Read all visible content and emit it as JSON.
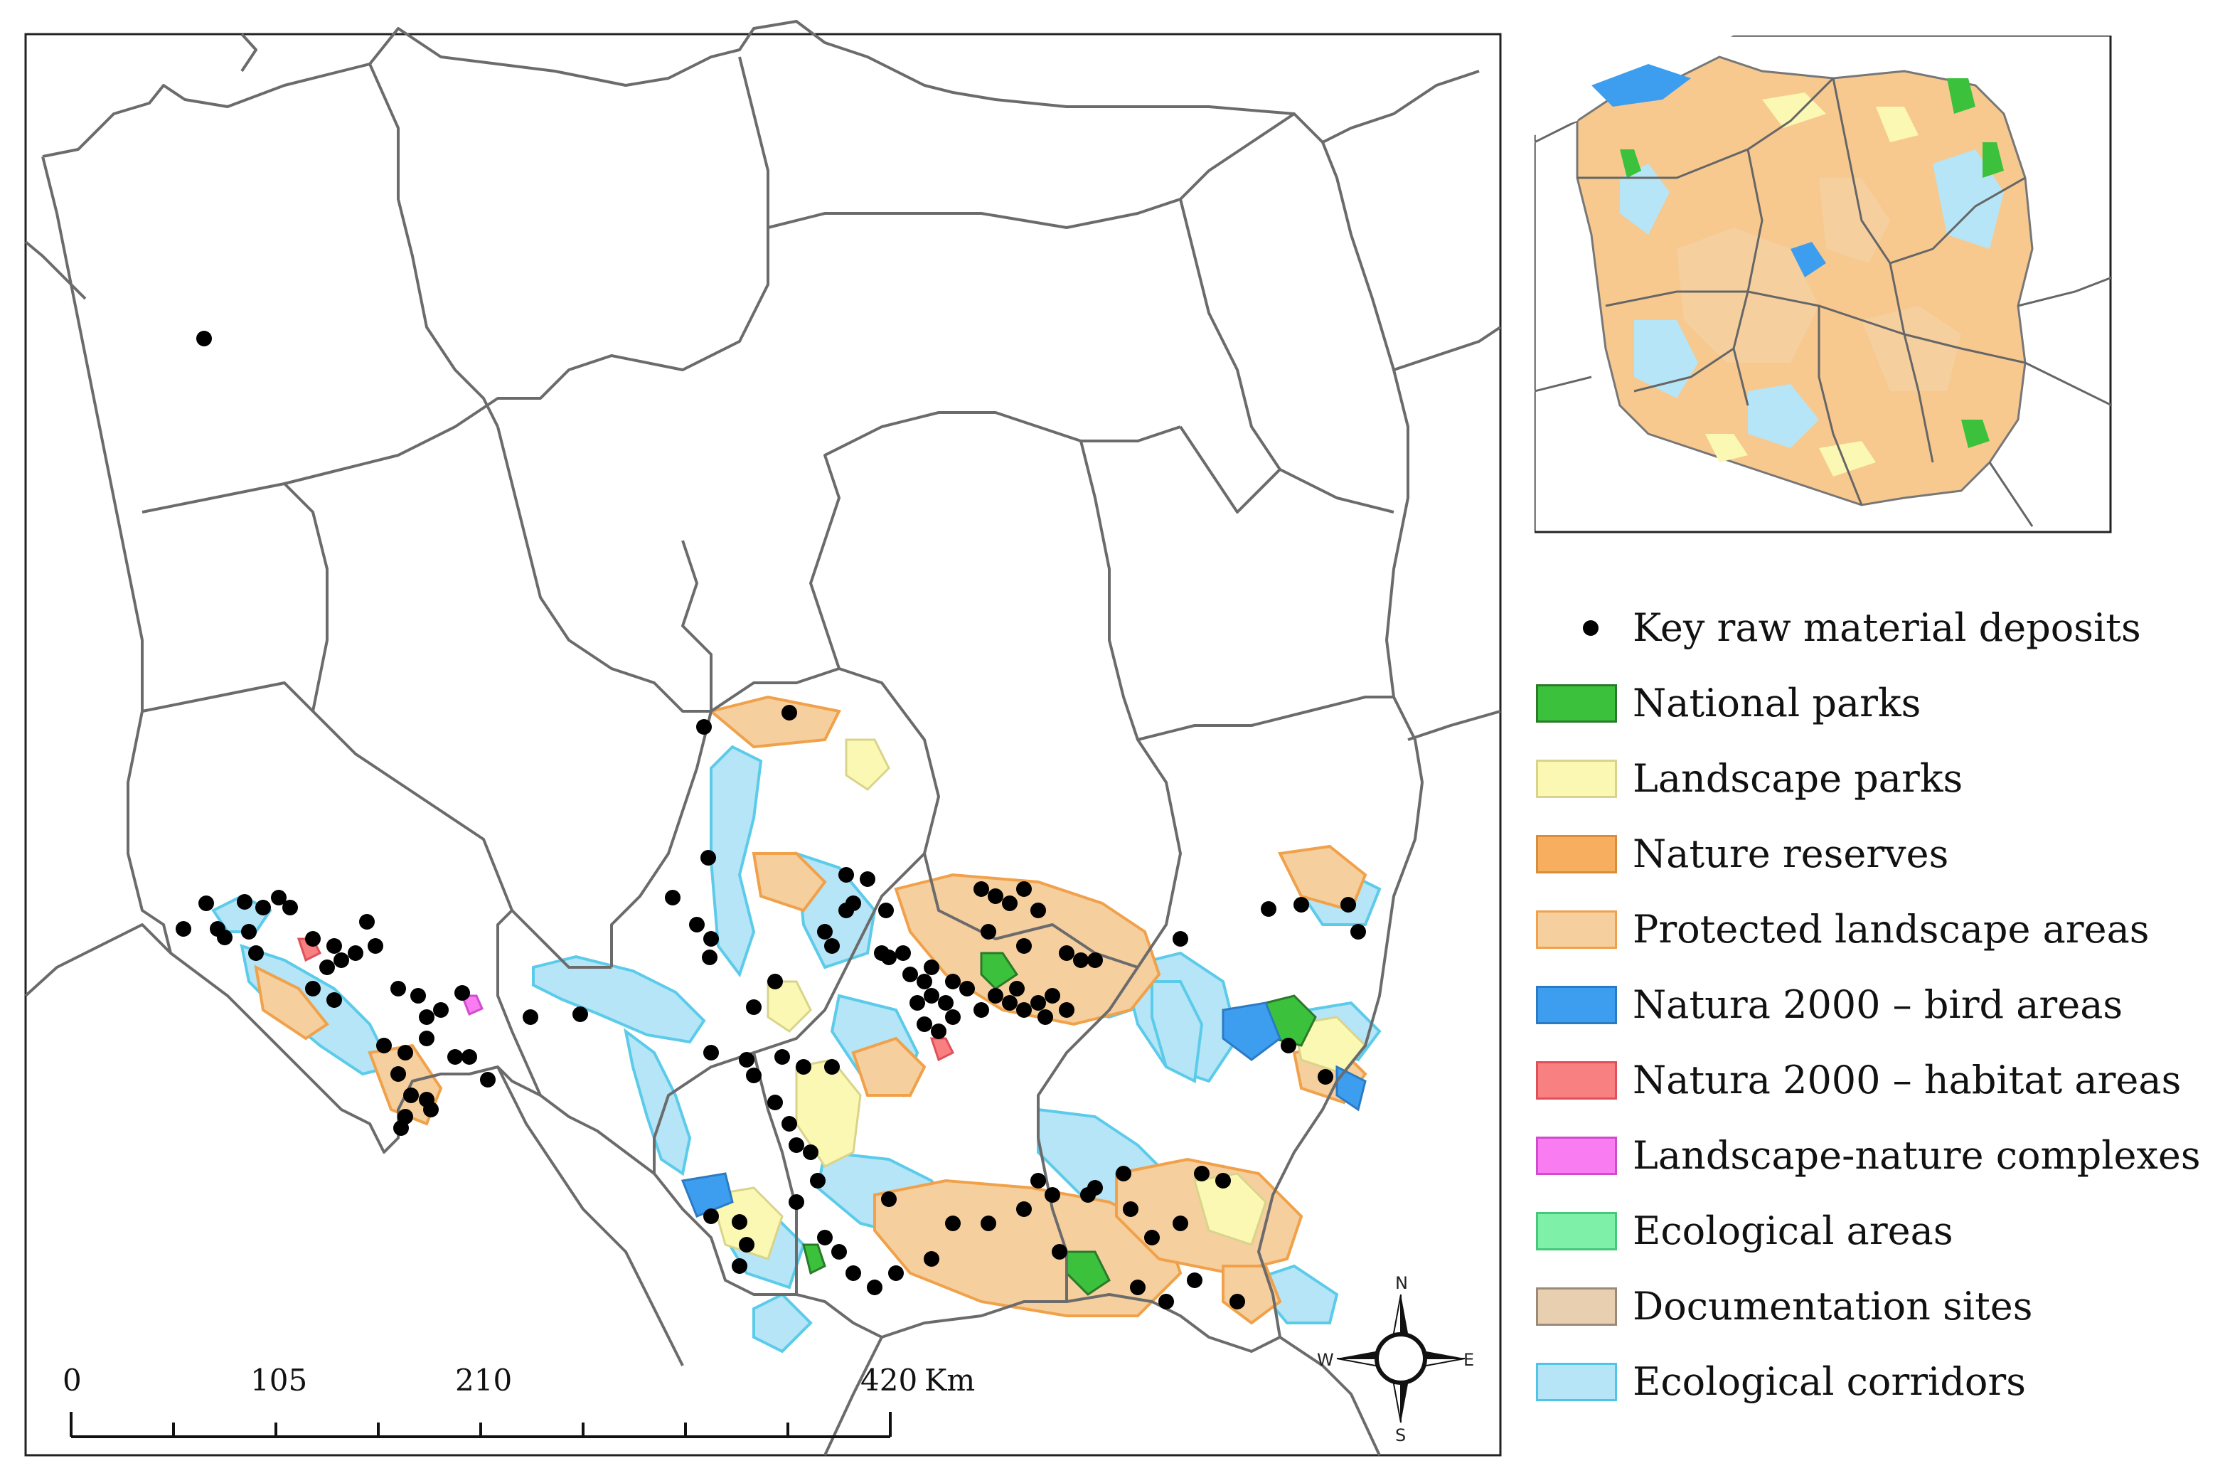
{
  "scale_bar": {
    "ticks": [
      "0",
      "105",
      "210",
      "420"
    ],
    "unit": "Km"
  },
  "compass": {
    "north": "N",
    "south": "S",
    "east": "E",
    "west": "W"
  },
  "legend": [
    {
      "label": "Key raw material deposits",
      "fill": "#000000",
      "kind": "point"
    },
    {
      "label": "National parks",
      "fill": "#3cc13c",
      "stroke": "#2a7a2a"
    },
    {
      "label": "Landscape parks",
      "fill": "#fbf8b3",
      "stroke": "#d9d48a"
    },
    {
      "label": "Nature reserves",
      "fill": "#f8ae5f",
      "stroke": "#d98c3a"
    },
    {
      "label": "Protected landscape areas",
      "fill": "#f6cf9f",
      "stroke": "#f0a14a"
    },
    {
      "label": "Natura 2000 – bird areas",
      "fill": "#3d9ef0",
      "stroke": "#2b7bc4"
    },
    {
      "label": "Natura 2000 – habitat areas",
      "fill": "#f88080",
      "stroke": "#e0505a"
    },
    {
      "label": "Landscape-nature complexes",
      "fill": "#f97cf0",
      "stroke": "#d24ad0"
    },
    {
      "label": "Ecological areas",
      "fill": "#7ff0a8",
      "stroke": "#45c87a"
    },
    {
      "label": "Documentation sites",
      "fill": "#e8cfb0",
      "stroke": "#9c8a78"
    },
    {
      "label": "Ecological corridors",
      "fill": "#b5e5f6",
      "stroke": "#4fc6e8"
    }
  ],
  "colors": {
    "boundary": "#6b6b6b",
    "deposit": "#000000",
    "corridor": "#b5e5f6",
    "corridor_edge": "#5ccbea",
    "protected": "#f6cf9f",
    "protected_edge": "#f0a14a",
    "landscape_park": "#fbf8b3",
    "national_park": "#3cc13c",
    "bird_area": "#3d9ef0",
    "habitat_area": "#f88080",
    "complex": "#f97cf0"
  }
}
